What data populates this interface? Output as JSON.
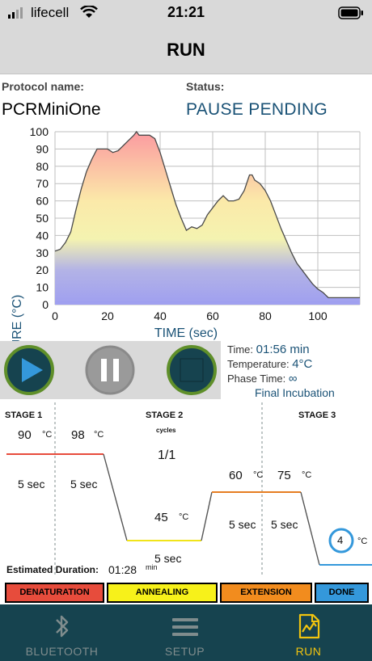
{
  "status_bar": {
    "carrier": "lifecell",
    "time": "21:21"
  },
  "header": {
    "title": "RUN"
  },
  "protocol": {
    "label": "Protocol name:",
    "name": "PCRMiniOne"
  },
  "status": {
    "label": "Status:",
    "value": "PAUSE PENDING"
  },
  "chart_data": {
    "type": "area",
    "xlabel": "TIME (sec)",
    "ylabel": "TEMPERATURE (°C)",
    "xlim": [
      0,
      116
    ],
    "ylim": [
      0,
      100
    ],
    "x_ticks": [
      "0",
      "20",
      "40",
      "60",
      "80",
      "100"
    ],
    "y_ticks": [
      "0",
      "10",
      "20",
      "30",
      "40",
      "50",
      "60",
      "70",
      "80",
      "90",
      "100"
    ],
    "grid": true,
    "x": [
      0,
      2,
      4,
      6,
      8,
      10,
      12,
      14,
      16,
      18,
      20,
      22,
      24,
      26,
      28,
      30,
      31,
      32,
      34,
      36,
      38,
      40,
      42,
      44,
      46,
      48,
      50,
      52,
      54,
      56,
      58,
      60,
      62,
      64,
      66,
      68,
      70,
      72,
      74,
      75,
      76,
      78,
      80,
      82,
      84,
      86,
      88,
      90,
      92,
      94,
      96,
      98,
      100,
      102,
      104,
      106,
      108,
      110,
      112,
      116
    ],
    "y": [
      31,
      32,
      36,
      42,
      55,
      67,
      77,
      84,
      90,
      90,
      90,
      88,
      89,
      92,
      95,
      98,
      100,
      98,
      98,
      98,
      96,
      88,
      78,
      68,
      58,
      50,
      43,
      45,
      44,
      46,
      52,
      56,
      60,
      63,
      60,
      60,
      61,
      66,
      75,
      75,
      72,
      70,
      66,
      60,
      52,
      44,
      37,
      30,
      24,
      20,
      16,
      12,
      9,
      7,
      4,
      4,
      4,
      4,
      4,
      4
    ],
    "fill_gradient": [
      "#fb9aa0",
      "#fbe9a9",
      "#f4f3b0",
      "#b3b3e6",
      "#9f9ff0"
    ]
  },
  "controls": {
    "play_icon": "play-icon",
    "pause_icon": "pause-icon",
    "stop_icon": "stop-icon"
  },
  "run_info": {
    "time_label": "Time:",
    "time_value": "01:56 min",
    "temp_label": "Temperature:",
    "temp_value": "4°C",
    "phase_label": "Phase Time:",
    "phase_value": "∞",
    "phase_name": "Final Incubation"
  },
  "stages": {
    "stage1": {
      "title": "STAGE 1",
      "temp1": "90",
      "temp2": "98",
      "unit": "°C",
      "time1": "5 sec",
      "time2": "5 sec"
    },
    "stage2": {
      "title": "STAGE 2",
      "cycles_label": "cycles",
      "cycles": "1/1",
      "temp": "45",
      "unit": "°C",
      "time": "5 sec"
    },
    "stage3": {
      "title": "STAGE 3",
      "temp1": "60",
      "temp2": "75",
      "unit": "°C",
      "time1": "5 sec",
      "time2": "5 sec"
    },
    "hold": {
      "temp": "4",
      "unit": "°C"
    }
  },
  "estimate": {
    "label": "Estimated Duration:",
    "value": "01:28",
    "unit": "min"
  },
  "legend": [
    {
      "label": "DENATURATION",
      "color": "#e74c3c"
    },
    {
      "label": "ANNEALING",
      "color": "#f7f11a"
    },
    {
      "label": "EXTENSION",
      "color": "#f28c1e"
    },
    {
      "label": "DONE",
      "color": "#3498db"
    }
  ],
  "tabs": [
    {
      "label": "BLUETOOTH",
      "icon": "bluetooth-icon",
      "active": false
    },
    {
      "label": "SETUP",
      "icon": "menu-icon",
      "active": false
    },
    {
      "label": "RUN",
      "icon": "run-chart-icon",
      "active": true
    }
  ]
}
